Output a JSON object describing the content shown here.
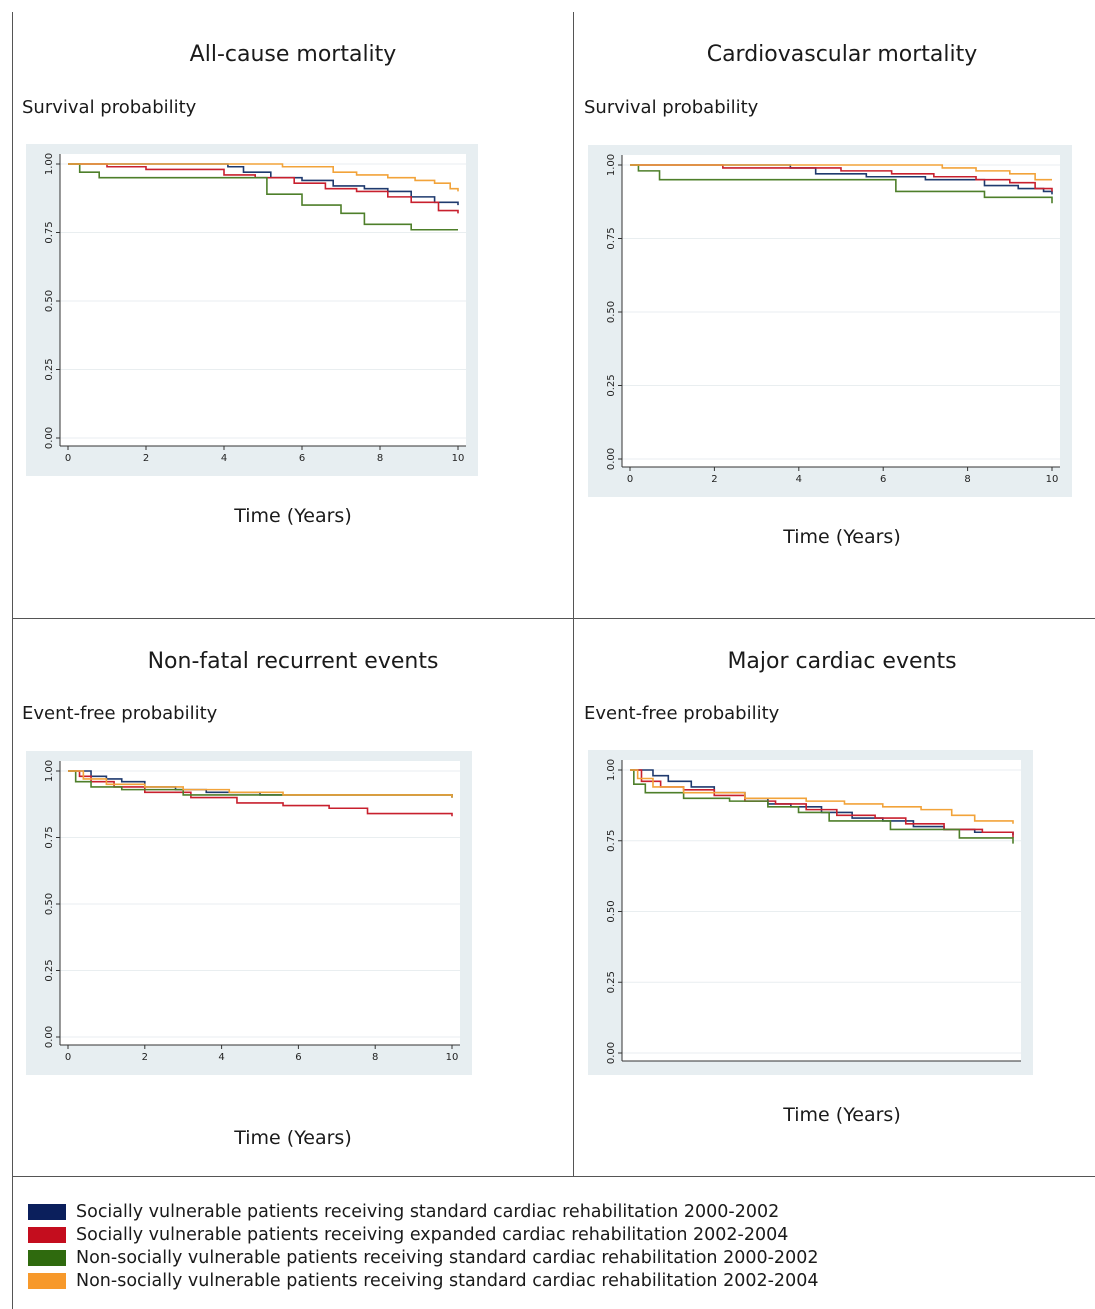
{
  "colors": {
    "series": [
      "#1f3a6e",
      "#c8202e",
      "#4e7f2a",
      "#f2a33a"
    ],
    "legend_swatch": [
      "#0b1f5c",
      "#c40d1e",
      "#2f6a0e",
      "#f7992b"
    ]
  },
  "legend": [
    "Socially vulnerable patients receiving standard cardiac rehabilitation 2000-2002",
    "Socially vulnerable patients receiving expanded cardiac rehabilitation 2002-2004",
    "Non-socially vulnerable patients receiving standard cardiac rehabilitation 2000-2002",
    "Non-socially vulnerable patients receiving standard cardiac rehabilitation 2002-2004"
  ],
  "chart_data": [
    {
      "type": "line",
      "title": "All-cause mortality",
      "ylabel": "Survival probability",
      "xlabel": "Time (Years)",
      "xlim": [
        0,
        10
      ],
      "ylim": [
        0,
        1
      ],
      "xticks": [
        "0",
        "2",
        "4",
        "6",
        "8",
        "10"
      ],
      "yticks": [
        "0.00",
        "0.25",
        "0.50",
        "0.75",
        "1.00"
      ],
      "grid": true,
      "series": [
        {
          "name": "Socially vulnerable patients receiving standard cardiac rehabilitation 2000-2002",
          "x": [
            0,
            4.1,
            4.5,
            5.2,
            6.0,
            6.8,
            7.6,
            8.2,
            8.8,
            9.4,
            10
          ],
          "y": [
            1.0,
            0.99,
            0.97,
            0.95,
            0.94,
            0.92,
            0.91,
            0.9,
            0.88,
            0.86,
            0.85
          ]
        },
        {
          "name": "Socially vulnerable patients receiving expanded cardiac rehabilitation 2002-2004",
          "x": [
            0,
            1.0,
            2.0,
            4.0,
            4.8,
            5.8,
            6.6,
            7.4,
            8.2,
            8.8,
            9.5,
            10
          ],
          "y": [
            1.0,
            0.99,
            0.98,
            0.96,
            0.95,
            0.93,
            0.91,
            0.9,
            0.88,
            0.86,
            0.83,
            0.82
          ]
        },
        {
          "name": "Non-socially vulnerable patients receiving standard cardiac rehabilitation 2000-2002",
          "x": [
            0,
            0.3,
            0.8,
            4.6,
            5.1,
            6.0,
            7.0,
            7.6,
            8.8,
            10
          ],
          "y": [
            1.0,
            0.97,
            0.95,
            0.95,
            0.89,
            0.85,
            0.82,
            0.78,
            0.76,
            0.76
          ]
        },
        {
          "name": "Non-socially vulnerable patients receiving standard cardiac rehabilitation 2002-2004",
          "x": [
            0,
            4.2,
            5.5,
            6.8,
            7.4,
            8.2,
            8.9,
            9.4,
            9.8,
            10
          ],
          "y": [
            1.0,
            1.0,
            0.99,
            0.97,
            0.96,
            0.95,
            0.94,
            0.93,
            0.91,
            0.9
          ]
        }
      ]
    },
    {
      "type": "line",
      "title": "Cardiovascular mortality",
      "ylabel": "Survival probability",
      "xlabel": "Time (Years)",
      "xlim": [
        0,
        10
      ],
      "ylim": [
        0,
        1
      ],
      "xticks": [
        "0",
        "2",
        "4",
        "6",
        "8",
        "10"
      ],
      "yticks": [
        "0.00",
        "0.25",
        "0.50",
        "0.75",
        "1.00"
      ],
      "grid": true,
      "series": [
        {
          "name": "Socially vulnerable patients receiving standard cardiac rehabilitation 2000-2002",
          "x": [
            0,
            3.8,
            4.4,
            5.6,
            7.0,
            8.4,
            9.2,
            9.8,
            10
          ],
          "y": [
            1.0,
            0.99,
            0.97,
            0.96,
            0.95,
            0.93,
            0.92,
            0.91,
            0.9
          ]
        },
        {
          "name": "Socially vulnerable patients receiving expanded cardiac rehabilitation 2002-2004",
          "x": [
            0,
            2.2,
            4.0,
            5.0,
            6.2,
            7.2,
            8.2,
            9.0,
            9.6,
            10
          ],
          "y": [
            1.0,
            0.99,
            0.99,
            0.98,
            0.97,
            0.96,
            0.95,
            0.94,
            0.92,
            0.91
          ]
        },
        {
          "name": "Non-socially vulnerable patients receiving standard cardiac rehabilitation 2000-2002",
          "x": [
            0,
            0.2,
            0.7,
            4.5,
            6.3,
            8.4,
            10
          ],
          "y": [
            1.0,
            0.98,
            0.95,
            0.95,
            0.91,
            0.89,
            0.87
          ]
        },
        {
          "name": "Non-socially vulnerable patients receiving standard cardiac rehabilitation 2002-2004",
          "x": [
            0,
            6.2,
            7.4,
            8.2,
            9.0,
            9.6,
            10
          ],
          "y": [
            1.0,
            1.0,
            0.99,
            0.98,
            0.97,
            0.95,
            0.95
          ]
        }
      ]
    },
    {
      "type": "line",
      "title": "Non-fatal recurrent events",
      "ylabel": "Event-free probability",
      "xlabel": "Time (Years)",
      "xlim": [
        0,
        10
      ],
      "ylim": [
        0,
        1
      ],
      "xticks": [
        "0",
        "2",
        "4",
        "6",
        "8",
        "10"
      ],
      "yticks": [
        "0.00",
        "0.25",
        "0.50",
        "0.75",
        "1.00"
      ],
      "grid": true,
      "series": [
        {
          "name": "Socially vulnerable patients receiving standard cardiac rehabilitation 2000-2002",
          "x": [
            0,
            0.6,
            1.0,
            1.4,
            2.0,
            2.8,
            3.6,
            5.0,
            10
          ],
          "y": [
            1.0,
            0.98,
            0.97,
            0.96,
            0.94,
            0.93,
            0.92,
            0.91,
            0.9
          ]
        },
        {
          "name": "Socially vulnerable patients receiving expanded cardiac rehabilitation 2002-2004",
          "x": [
            0,
            0.3,
            0.6,
            1.2,
            2.0,
            3.2,
            4.4,
            5.6,
            6.8,
            7.8,
            10
          ],
          "y": [
            1.0,
            0.98,
            0.96,
            0.94,
            0.92,
            0.9,
            0.88,
            0.87,
            0.86,
            0.84,
            0.83
          ]
        },
        {
          "name": "Non-socially vulnerable patients receiving standard cardiac rehabilitation 2000-2002",
          "x": [
            0,
            0.2,
            0.6,
            1.4,
            3.0,
            10
          ],
          "y": [
            1.0,
            0.96,
            0.94,
            0.93,
            0.91,
            0.9
          ]
        },
        {
          "name": "Non-socially vulnerable patients receiving standard cardiac rehabilitation 2002-2004",
          "x": [
            0,
            0.4,
            1.0,
            2.0,
            3.0,
            4.2,
            5.6,
            10
          ],
          "y": [
            1.0,
            0.97,
            0.95,
            0.94,
            0.93,
            0.92,
            0.91,
            0.9
          ]
        }
      ]
    },
    {
      "type": "line",
      "title": "Major cardiac events",
      "ylabel": "Event-free probability",
      "xlabel": "Time (Years)",
      "xlim": [
        0,
        10
      ],
      "ylim": [
        0,
        1
      ],
      "xticks": [],
      "yticks": [
        "0.00",
        "0.25",
        "0.50",
        "0.75",
        "1.00"
      ],
      "grid": true,
      "series": [
        {
          "name": "Socially vulnerable patients receiving standard cardiac rehabilitation 2000-2002",
          "x": [
            0,
            0.6,
            1.0,
            1.6,
            2.2,
            3.0,
            3.6,
            4.2,
            5.0,
            5.8,
            6.6,
            7.4,
            8.2,
            9.0,
            10
          ],
          "y": [
            1.0,
            0.98,
            0.96,
            0.94,
            0.92,
            0.9,
            0.88,
            0.87,
            0.85,
            0.83,
            0.82,
            0.8,
            0.79,
            0.78,
            0.77
          ]
        },
        {
          "name": "Socially vulnerable patients receiving expanded cardiac rehabilitation 2002-2004",
          "x": [
            0,
            0.3,
            0.8,
            1.4,
            2.2,
            3.0,
            3.8,
            4.6,
            5.4,
            6.4,
            7.2,
            8.2,
            9.2,
            10
          ],
          "y": [
            1.0,
            0.96,
            0.94,
            0.93,
            0.91,
            0.89,
            0.88,
            0.86,
            0.84,
            0.83,
            0.81,
            0.79,
            0.78,
            0.76
          ]
        },
        {
          "name": "Non-socially vulnerable patients receiving standard cardiac rehabilitation 2000-2002",
          "x": [
            0,
            0.1,
            0.4,
            1.4,
            2.6,
            3.6,
            4.4,
            5.2,
            6.8,
            8.6,
            10
          ],
          "y": [
            1.0,
            0.95,
            0.92,
            0.9,
            0.89,
            0.87,
            0.85,
            0.82,
            0.79,
            0.76,
            0.74
          ]
        },
        {
          "name": "Non-socially vulnerable patients receiving standard cardiac rehabilitation 2002-2004",
          "x": [
            0,
            0.2,
            0.6,
            1.4,
            3.0,
            4.6,
            5.6,
            6.6,
            7.6,
            8.4,
            9.0,
            10
          ],
          "y": [
            1.0,
            0.97,
            0.94,
            0.92,
            0.9,
            0.89,
            0.88,
            0.87,
            0.86,
            0.84,
            0.82,
            0.81
          ]
        }
      ]
    }
  ]
}
